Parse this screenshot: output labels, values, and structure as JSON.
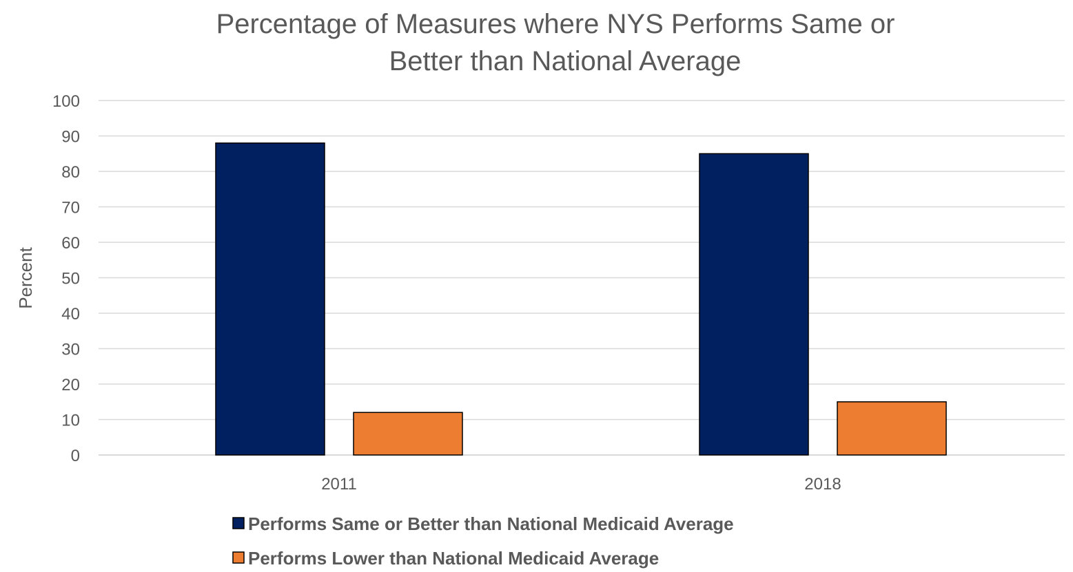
{
  "chart_data": {
    "type": "bar",
    "title_lines": [
      "Percentage of Measures where NYS Performs Same or",
      "Better than National Average"
    ],
    "xlabel": "",
    "ylabel": "Percent",
    "ylim": [
      0,
      100
    ],
    "yticks": [
      0,
      10,
      20,
      30,
      40,
      50,
      60,
      70,
      80,
      90,
      100
    ],
    "grid": true,
    "legend_position": "bottom",
    "categories": [
      "2011",
      "2018"
    ],
    "series": [
      {
        "name": "Performs Same or Better than National Medicaid Average",
        "color": "#002060",
        "values": [
          88,
          85
        ]
      },
      {
        "name": "Performs Lower than National Medicaid Average",
        "color": "#ED7D31",
        "values": [
          12,
          15
        ]
      }
    ]
  }
}
